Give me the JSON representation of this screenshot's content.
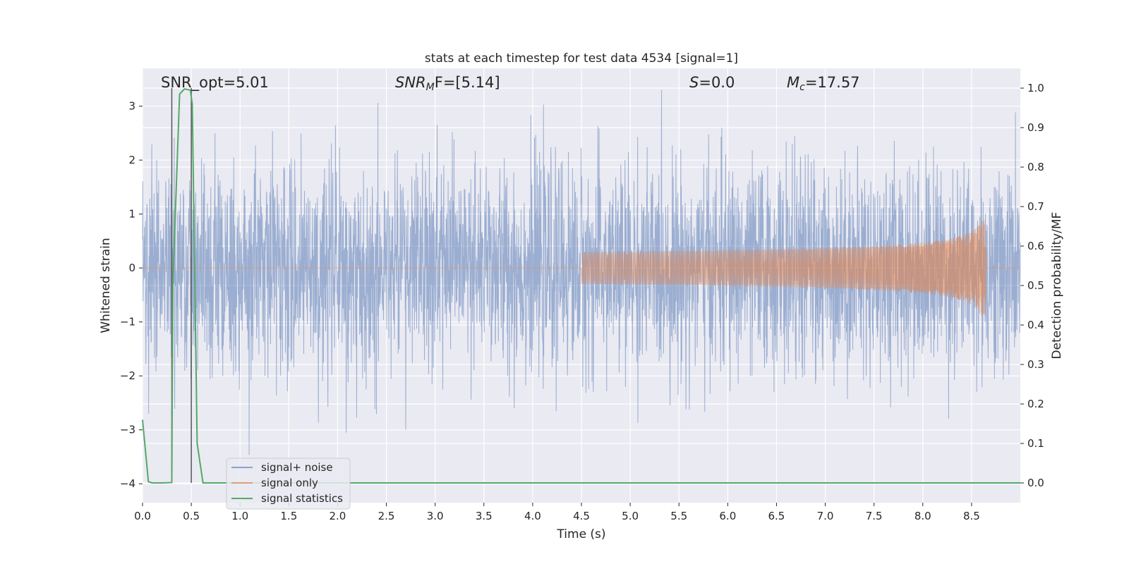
{
  "chart_data": {
    "type": "line",
    "title": "stats at each timestep for test data 4534 [signal=1]",
    "xlabel": "Time (s)",
    "ylabel_left": "Whitened strain",
    "ylabel_right": "Detection probability/MF",
    "xlim": [
      0.0,
      9.0
    ],
    "ylim_left": [
      -4.35,
      3.7
    ],
    "ylim_right": [
      -0.05,
      1.05
    ],
    "x_ticks": [
      0.0,
      0.5,
      1.0,
      1.5,
      2.0,
      2.5,
      3.0,
      3.5,
      4.0,
      4.5,
      5.0,
      5.5,
      6.0,
      6.5,
      7.0,
      7.5,
      8.0,
      8.5
    ],
    "x_tick_labels": [
      "0.0",
      "0.5",
      "1.0",
      "1.5",
      "2.0",
      "2.5",
      "3.0",
      "3.5",
      "4.0",
      "4.5",
      "5.0",
      "5.5",
      "6.0",
      "6.5",
      "7.0",
      "7.5",
      "8.0",
      "8.5"
    ],
    "y_ticks_left": [
      3,
      2,
      1,
      0,
      -1,
      -2,
      -3,
      -4
    ],
    "y_tick_labels_left": [
      "3",
      "2",
      "1",
      "0",
      "−1",
      "−2",
      "−3",
      "−4"
    ],
    "y_ticks_right": [
      1.0,
      0.9,
      0.8,
      0.7,
      0.6,
      0.5,
      0.4,
      0.3,
      0.2,
      0.1,
      0.0
    ],
    "y_tick_labels_right": [
      "1.0",
      "0.9",
      "0.8",
      "0.7",
      "0.6",
      "0.5",
      "0.4",
      "0.3",
      "0.2",
      "0.1",
      "0.0"
    ],
    "grid": true,
    "legend_position": "lower-left",
    "annotations": {
      "snr_opt": "SNR_opt=5.01",
      "snr_mf_base": "SNR",
      "snr_mf_sub": "M",
      "snr_mf_rest": "F=[5.14]",
      "s_sym": "S",
      "s_rest": "=0.0",
      "mc_sym": "M",
      "mc_sub": "c",
      "mc_rest": "=17.57"
    },
    "vlines_x": [
      0.3,
      0.5
    ],
    "series": [
      {
        "name": "signal+ noise",
        "color": "#4c72b0",
        "description_values": {
          "x_start": 0.0,
          "x_end": 9.0,
          "typical_range": [
            -2.0,
            2.0
          ],
          "max": 3.3,
          "min": -4.0
        }
      },
      {
        "name": "signal only",
        "color": "#dd8452",
        "chirp": {
          "x_start": 4.5,
          "x_peak": 8.65,
          "peak_amplitude": 1.0,
          "x_end": 8.65
        }
      },
      {
        "name": "signal statistics",
        "color": "#55a868",
        "axis": "right",
        "x": [
          0.0,
          0.06,
          0.1,
          0.2,
          0.3,
          0.31,
          0.38,
          0.43,
          0.49,
          0.51,
          0.56,
          0.62,
          0.7,
          9.0
        ],
        "y": [
          0.16,
          0.003,
          0.0,
          0.0,
          0.001,
          0.5,
          0.985,
          0.998,
          0.995,
          0.96,
          0.1,
          0.0,
          0.0,
          0.0
        ]
      }
    ]
  }
}
